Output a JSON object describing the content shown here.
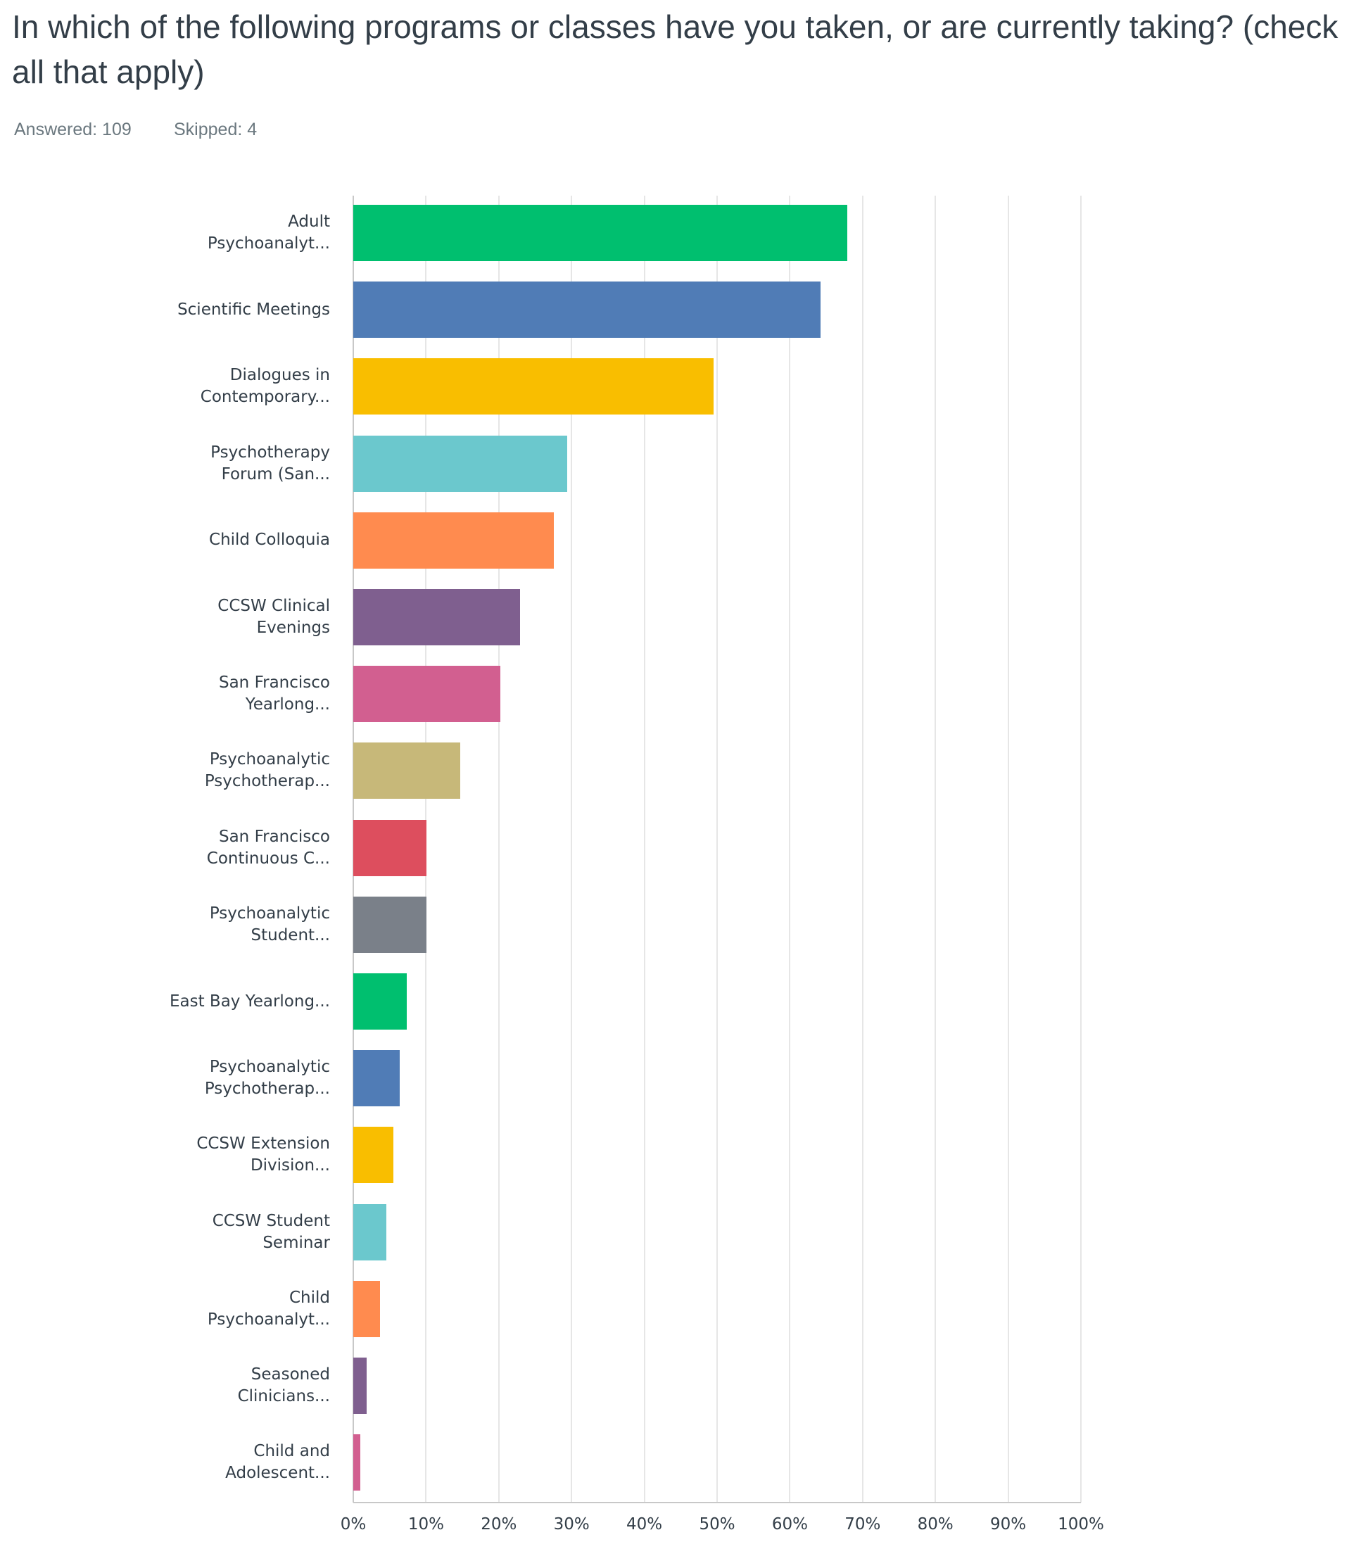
{
  "chart_data": {
    "type": "bar",
    "orientation": "horizontal",
    "title": "In which of the following programs or classes have you taken, or are currently taking? (check all that apply)",
    "answered": "Answered: 109",
    "skipped": "Skipped: 4",
    "categories": [
      "Adult Psychoanalyt...",
      "Scientific Meetings",
      "Dialogues in Contemporary...",
      "Psychotherapy Forum (San...",
      "Child Colloquia",
      "CCSW Clinical Evenings",
      "San Francisco Yearlong...",
      "Psychoanalytic Psychotherap...",
      "San Francisco Continuous C...",
      "Psychoanalytic Student...",
      "East Bay Yearlong...",
      "Psychoanalytic Psychotherap...",
      "CCSW Extension Division...",
      "CCSW Student Seminar",
      "Child Psychoanalyt...",
      "Seasoned Clinicians...",
      "Child and Adolescent..."
    ],
    "values": [
      67.89,
      64.22,
      49.54,
      29.36,
      27.52,
      22.94,
      20.18,
      14.68,
      10.09,
      10.09,
      7.34,
      6.42,
      5.5,
      4.59,
      3.67,
      1.83,
      0.92
    ],
    "colors": [
      "#00bf6f",
      "#507cb6",
      "#f9be00",
      "#6bc8cd",
      "#ff8b4f",
      "#7f5f8f",
      "#d25f90",
      "#c7b879",
      "#dd4e5e",
      "#7a8089",
      "#00bf6f",
      "#507cb6",
      "#f9be00",
      "#6bc8cd",
      "#ff8b4f",
      "#7f5f8f",
      "#d25f90"
    ],
    "xlim": [
      0,
      100
    ],
    "xticks": [
      {
        "value": 0,
        "label": "0%"
      },
      {
        "value": 10,
        "label": "10%"
      },
      {
        "value": 20,
        "label": "20%"
      },
      {
        "value": 30,
        "label": "30%"
      },
      {
        "value": 40,
        "label": "40%"
      },
      {
        "value": 50,
        "label": "50%"
      },
      {
        "value": 60,
        "label": "60%"
      },
      {
        "value": 70,
        "label": "70%"
      },
      {
        "value": 80,
        "label": "80%"
      },
      {
        "value": 90,
        "label": "90%"
      },
      {
        "value": 100,
        "label": "100%"
      }
    ],
    "grid": true
  }
}
